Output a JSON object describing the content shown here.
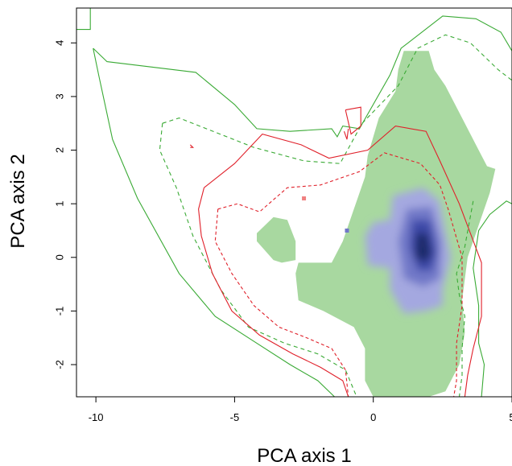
{
  "chart_data": {
    "type": "heatmap",
    "title": "",
    "xlabel": "PCA axis 1",
    "ylabel": "PCA axis 2",
    "xlim": [
      -10.7,
      5
    ],
    "ylim": [
      -2.6,
      4.65
    ],
    "x_ticks": [
      -10,
      -5,
      0,
      5
    ],
    "y_ticks": [
      -2,
      -1,
      0,
      1,
      2,
      3,
      4
    ],
    "x_tick_labels": [
      "-10",
      "-5",
      "0",
      "5"
    ],
    "y_tick_labels": [
      "-2",
      "-1",
      "0",
      "1",
      "2",
      "3",
      "4"
    ],
    "grid": false,
    "legend": "none",
    "colors": {
      "green_fill": "#a8d8a0",
      "blue_density": "#1f2a6b",
      "blue_light": "#9aa0de",
      "green_contour": "#3aaa35",
      "red_contour": "#e0202a"
    },
    "regions": [
      {
        "name": "green-range",
        "fill": "#a8d8a0",
        "polygon": [
          [
            1.1,
            3.85
          ],
          [
            2.0,
            3.85
          ],
          [
            2.2,
            3.5
          ],
          [
            2.6,
            3.2
          ],
          [
            3.2,
            2.6
          ],
          [
            3.8,
            2.0
          ],
          [
            4.1,
            1.7
          ],
          [
            4.4,
            1.65
          ],
          [
            4.2,
            1.2
          ],
          [
            3.8,
            0.6
          ],
          [
            3.4,
            0.0
          ],
          [
            3.2,
            -0.8
          ],
          [
            3.3,
            -1.4
          ],
          [
            3.1,
            -2.0
          ],
          [
            2.6,
            -2.5
          ],
          [
            2.0,
            -2.6
          ],
          [
            0.0,
            -2.6
          ],
          [
            -0.3,
            -2.3
          ],
          [
            -0.3,
            -1.7
          ],
          [
            -0.7,
            -1.3
          ],
          [
            -1.8,
            -1.0
          ],
          [
            -2.7,
            -0.8
          ],
          [
            -2.8,
            -0.3
          ],
          [
            -2.7,
            -0.1
          ],
          [
            -1.5,
            -0.1
          ],
          [
            -1.1,
            0.3
          ],
          [
            -0.7,
            0.9
          ],
          [
            -0.3,
            1.5
          ],
          [
            -0.2,
            1.9
          ],
          [
            0.2,
            2.6
          ],
          [
            0.8,
            3.1
          ],
          [
            0.9,
            3.5
          ]
        ]
      },
      {
        "name": "green-island",
        "fill": "#a8d8a0",
        "polygon": [
          [
            -4.2,
            0.45
          ],
          [
            -3.6,
            0.75
          ],
          [
            -3.1,
            0.7
          ],
          [
            -2.8,
            0.3
          ],
          [
            -2.8,
            -0.05
          ],
          [
            -3.3,
            -0.1
          ],
          [
            -3.6,
            -0.05
          ],
          [
            -4.2,
            0.3
          ]
        ]
      }
    ],
    "density": {
      "center": [
        1.7,
        0.15
      ],
      "levels": [
        {
          "polygon": [
            [
              0.7,
              1.15
            ],
            [
              1.8,
              1.3
            ],
            [
              2.4,
              1.05
            ],
            [
              2.6,
              0.5
            ],
            [
              2.8,
              0.0
            ],
            [
              2.5,
              -0.6
            ],
            [
              2.5,
              -0.9
            ],
            [
              1.9,
              -1.0
            ],
            [
              1.1,
              -1.05
            ],
            [
              0.6,
              -0.6
            ],
            [
              0.6,
              -0.2
            ],
            [
              -0.2,
              -0.15
            ],
            [
              -0.3,
              0.4
            ],
            [
              0.0,
              0.65
            ],
            [
              0.6,
              0.7
            ]
          ],
          "color": "#a4a8e0"
        },
        {
          "polygon": [
            [
              1.2,
              0.9
            ],
            [
              2.1,
              0.95
            ],
            [
              2.45,
              0.3
            ],
            [
              2.4,
              -0.4
            ],
            [
              1.8,
              -0.55
            ],
            [
              1.1,
              -0.4
            ],
            [
              0.9,
              0.3
            ]
          ],
          "color": "#7178c8"
        },
        {
          "polygon": [
            [
              1.4,
              0.7
            ],
            [
              2.05,
              0.7
            ],
            [
              2.3,
              0.1
            ],
            [
              2.1,
              -0.25
            ],
            [
              1.6,
              -0.25
            ],
            [
              1.3,
              0.2
            ]
          ],
          "color": "#3e4aa8"
        },
        {
          "polygon": [
            [
              1.55,
              0.45
            ],
            [
              1.95,
              0.45
            ],
            [
              2.1,
              0.05
            ],
            [
              1.85,
              -0.1
            ],
            [
              1.5,
              0.0
            ]
          ],
          "color": "#1f2a6b"
        }
      ]
    },
    "contours": [
      {
        "name": "green-solid",
        "color": "#3aaa35",
        "dash": "",
        "points": [
          [
            -10.7,
            4.25
          ],
          [
            -10.2,
            4.25
          ],
          [
            -10.2,
            4.65
          ],
          [
            -10.2,
            4.65
          ]
        ],
        "points2": [
          [
            -10.1,
            3.9
          ],
          [
            -9.6,
            3.65
          ],
          [
            -6.4,
            3.45
          ],
          [
            -5.0,
            2.85
          ],
          [
            -4.2,
            2.4
          ],
          [
            -3.0,
            2.35
          ],
          [
            -1.5,
            2.4
          ],
          [
            -1.3,
            2.25
          ],
          [
            -1.1,
            2.45
          ],
          [
            -0.5,
            2.4
          ],
          [
            0.6,
            3.4
          ],
          [
            1.0,
            3.9
          ],
          [
            2.5,
            4.5
          ],
          [
            3.7,
            4.45
          ],
          [
            4.6,
            4.2
          ],
          [
            5.0,
            3.85
          ],
          [
            5.0,
            1.0
          ],
          [
            4.8,
            1.05
          ],
          [
            4.2,
            0.8
          ],
          [
            3.8,
            0.5
          ],
          [
            3.6,
            -0.2
          ],
          [
            3.8,
            -0.9
          ],
          [
            3.8,
            -1.6
          ],
          [
            4.0,
            -2.0
          ],
          [
            3.9,
            -2.6
          ]
        ],
        "points3": [
          [
            -10.1,
            3.9
          ],
          [
            -9.9,
            3.4
          ],
          [
            -9.4,
            2.2
          ],
          [
            -8.5,
            1.1
          ],
          [
            -7.0,
            -0.3
          ],
          [
            -5.7,
            -1.1
          ],
          [
            -4.2,
            -1.6
          ],
          [
            -3.0,
            -2.0
          ],
          [
            -2.0,
            -2.3
          ],
          [
            -1.4,
            -2.6
          ]
        ]
      },
      {
        "name": "green-dashed",
        "color": "#3aaa35",
        "dash": "5,4",
        "points": [
          [
            -7.6,
            2.5
          ],
          [
            -7.7,
            2.0
          ],
          [
            -7.1,
            1.3
          ],
          [
            -6.5,
            0.4
          ],
          [
            -5.5,
            -0.6
          ],
          [
            -4.5,
            -1.3
          ],
          [
            -3.2,
            -1.6
          ],
          [
            -2.0,
            -1.8
          ],
          [
            -1.0,
            -2.1
          ],
          [
            -0.6,
            -2.6
          ]
        ],
        "points2": [
          [
            -7.6,
            2.5
          ],
          [
            -7.0,
            2.6
          ],
          [
            -4.3,
            2.05
          ],
          [
            -2.5,
            1.8
          ],
          [
            -1.2,
            1.75
          ],
          [
            -0.4,
            2.5
          ],
          [
            0.9,
            3.2
          ],
          [
            1.6,
            3.9
          ],
          [
            2.6,
            4.15
          ],
          [
            3.5,
            4.0
          ],
          [
            4.5,
            3.5
          ],
          [
            5.0,
            3.3
          ]
        ],
        "points3": [
          [
            3.6,
            1.05
          ],
          [
            3.3,
            0.2
          ],
          [
            3.0,
            -0.3
          ],
          [
            3.1,
            -0.7
          ],
          [
            3.3,
            -1.1
          ],
          [
            3.2,
            -1.7
          ],
          [
            3.2,
            -2.2
          ],
          [
            3.1,
            -2.6
          ]
        ]
      },
      {
        "name": "red-solid",
        "color": "#e0202a",
        "dash": "",
        "points": [
          [
            -6.6,
            2.1
          ],
          [
            -6.5,
            2.05
          ],
          [
            -6.6,
            2.05
          ]
        ],
        "points2": [
          [
            -1.0,
            2.75
          ],
          [
            -0.45,
            2.8
          ],
          [
            -0.45,
            2.45
          ],
          [
            -0.8,
            2.3
          ],
          [
            -1.0,
            2.75
          ]
        ],
        "points3": [
          [
            -1.05,
            2.35
          ],
          [
            -0.95,
            2.2
          ],
          [
            -0.9,
            2.4
          ]
        ],
        "points4": [
          [
            -6.1,
            1.3
          ],
          [
            -6.3,
            0.9
          ],
          [
            -6.2,
            0.4
          ],
          [
            -5.8,
            -0.3
          ],
          [
            -5.1,
            -1.0
          ],
          [
            -4.1,
            -1.45
          ],
          [
            -2.9,
            -1.8
          ],
          [
            -1.9,
            -2.05
          ],
          [
            -1.1,
            -2.3
          ],
          [
            -0.9,
            -2.6
          ]
        ],
        "points5": [
          [
            -6.1,
            1.3
          ],
          [
            -5.0,
            1.75
          ],
          [
            -4.0,
            2.3
          ],
          [
            -2.6,
            2.1
          ],
          [
            -1.6,
            1.85
          ],
          [
            -0.2,
            2.0
          ],
          [
            0.8,
            2.45
          ],
          [
            1.9,
            2.35
          ],
          [
            2.4,
            1.8
          ],
          [
            3.1,
            1.0
          ],
          [
            3.5,
            0.45
          ],
          [
            3.9,
            -0.1
          ],
          [
            3.9,
            -1.1
          ],
          [
            3.6,
            -1.7
          ],
          [
            3.4,
            -2.2
          ],
          [
            3.3,
            -2.6
          ]
        ]
      },
      {
        "name": "red-dashed",
        "color": "#e0202a",
        "dash": "4,3",
        "points": [
          [
            -5.6,
            0.9
          ],
          [
            -5.7,
            0.3
          ],
          [
            -5.1,
            -0.3
          ],
          [
            -4.3,
            -0.9
          ],
          [
            -3.4,
            -1.3
          ],
          [
            -2.4,
            -1.5
          ],
          [
            -1.5,
            -1.7
          ],
          [
            -1.0,
            -2.1
          ],
          [
            -0.9,
            -2.6
          ]
        ],
        "points2": [
          [
            -5.6,
            0.9
          ],
          [
            -4.9,
            1.0
          ],
          [
            -4.1,
            0.85
          ],
          [
            -3.1,
            1.3
          ],
          [
            -1.9,
            1.35
          ],
          [
            -0.5,
            1.6
          ],
          [
            0.4,
            1.95
          ],
          [
            1.7,
            1.75
          ],
          [
            2.4,
            1.35
          ],
          [
            2.7,
            0.9
          ],
          [
            3.2,
            0.0
          ],
          [
            3.2,
            -0.9
          ],
          [
            3.0,
            -1.6
          ],
          [
            3.0,
            -2.3
          ],
          [
            2.9,
            -2.6
          ]
        ]
      }
    ],
    "small_marks": [
      {
        "x": -2.5,
        "y": 1.1,
        "color": "#f08080"
      },
      {
        "x": -0.95,
        "y": 0.5,
        "color": "#7178c8"
      }
    ]
  }
}
